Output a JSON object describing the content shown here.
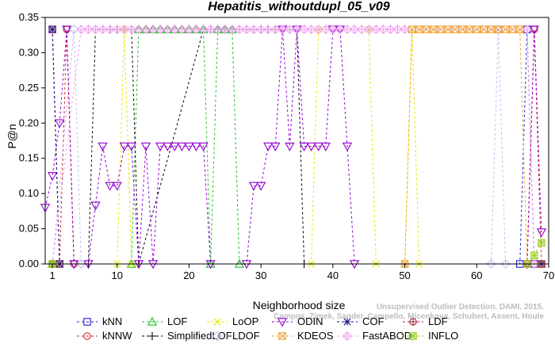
{
  "chart_data": {
    "type": "line",
    "title": "Hepatitis_withoutdupl_05_v09",
    "xlabel": "Neighborhood size",
    "ylabel": "P@n",
    "xlim": [
      0,
      70
    ],
    "ylim": [
      0,
      0.35
    ],
    "x_ticks": [
      1,
      10,
      20,
      30,
      40,
      50,
      60,
      70
    ],
    "y_ticks": [
      0.0,
      0.05,
      0.1,
      0.15,
      0.2,
      0.25,
      0.3,
      0.35
    ],
    "y_tick_labels": [
      "0.00",
      "0.05",
      "0.10",
      "0.15",
      "0.20",
      "0.25",
      "0.30",
      "0.35"
    ],
    "grid": false,
    "legend_position": "bottom",
    "series": [
      {
        "name": "kNN",
        "color": "#1f1fcf",
        "marker": "square",
        "points": [
          [
            1,
            0.333
          ],
          [
            2,
            0.0
          ],
          [
            66,
            0.0
          ],
          [
            67,
            0.333
          ],
          [
            68,
            0.0
          ],
          [
            69,
            0.0
          ]
        ]
      },
      {
        "name": "kNNW",
        "color": "#d62728",
        "marker": "circle",
        "points": [
          [
            1,
            0.333
          ],
          [
            2,
            0.0
          ],
          [
            3,
            0.333
          ],
          [
            4,
            0.0
          ],
          [
            67,
            0.0
          ],
          [
            68,
            0.333
          ],
          [
            69,
            0.0
          ]
        ]
      },
      {
        "name": "LOF",
        "color": "#22c022",
        "marker": "triangle-up",
        "points": [
          [
            1,
            0.0
          ],
          [
            12,
            0.0
          ],
          [
            13,
            0.333
          ],
          [
            14,
            0.333
          ],
          [
            15,
            0.333
          ],
          [
            16,
            0.333
          ],
          [
            17,
            0.333
          ],
          [
            18,
            0.333
          ],
          [
            19,
            0.333
          ],
          [
            20,
            0.333
          ],
          [
            21,
            0.333
          ],
          [
            22,
            0.333
          ],
          [
            23,
            0.0
          ],
          [
            24,
            0.333
          ],
          [
            25,
            0.333
          ],
          [
            26,
            0.333
          ],
          [
            27,
            0.0
          ],
          [
            69,
            0.0
          ]
        ]
      },
      {
        "name": "SimplifiedLOF",
        "color": "#000000",
        "marker": "plus",
        "points": [
          [
            1,
            0.0
          ],
          [
            6,
            0.0
          ],
          [
            7,
            0.333
          ],
          [
            8,
            0.333
          ],
          [
            9,
            0.333
          ],
          [
            10,
            0.333
          ],
          [
            11,
            0.333
          ],
          [
            12,
            0.333
          ],
          [
            13,
            0.0
          ],
          [
            22,
            0.333
          ],
          [
            23,
            0.333
          ],
          [
            24,
            0.333
          ],
          [
            25,
            0.333
          ],
          [
            26,
            0.333
          ],
          [
            27,
            0.333
          ],
          [
            28,
            0.333
          ],
          [
            29,
            0.333
          ],
          [
            30,
            0.333
          ],
          [
            31,
            0.333
          ],
          [
            32,
            0.333
          ],
          [
            33,
            0.333
          ],
          [
            34,
            0.333
          ],
          [
            35,
            0.333
          ],
          [
            36,
            0.0
          ],
          [
            69,
            0.0
          ]
        ]
      },
      {
        "name": "LoOP",
        "color": "#e6e600",
        "marker": "cross",
        "points": [
          [
            1,
            0.0
          ],
          [
            10,
            0.0
          ],
          [
            11,
            0.333
          ],
          [
            12,
            0.0
          ],
          [
            37,
            0.0
          ],
          [
            38,
            0.333
          ],
          [
            45,
            0.333
          ],
          [
            46,
            0.0
          ],
          [
            50,
            0.0
          ],
          [
            51,
            0.333
          ],
          [
            52,
            0.0
          ],
          [
            69,
            0.0
          ]
        ]
      },
      {
        "name": "LDOF",
        "color": "#c0c0f0",
        "marker": "diamond",
        "points": [
          [
            1,
            0.0
          ],
          [
            4,
            0.333
          ],
          [
            5,
            0.0
          ],
          [
            62,
            0.0
          ],
          [
            63,
            0.333
          ],
          [
            64,
            0.0
          ],
          [
            69,
            0.0
          ]
        ]
      },
      {
        "name": "ODIN",
        "color": "#9400d3",
        "marker": "triangle-down",
        "points": [
          [
            0,
            0.08
          ],
          [
            1,
            0.125
          ],
          [
            2,
            0.2
          ],
          [
            3,
            0.333
          ],
          [
            4,
            0.0
          ],
          [
            6,
            0.0
          ],
          [
            7,
            0.083
          ],
          [
            8,
            0.167
          ],
          [
            9,
            0.111
          ],
          [
            10,
            0.111
          ],
          [
            11,
            0.167
          ],
          [
            12,
            0.167
          ],
          [
            13,
            0.0
          ],
          [
            14,
            0.167
          ],
          [
            15,
            0.0
          ],
          [
            16,
            0.167
          ],
          [
            17,
            0.167
          ],
          [
            18,
            0.167
          ],
          [
            19,
            0.167
          ],
          [
            20,
            0.167
          ],
          [
            21,
            0.167
          ],
          [
            22,
            0.167
          ],
          [
            23,
            0.0
          ],
          [
            28,
            0.0
          ],
          [
            29,
            0.111
          ],
          [
            30,
            0.111
          ],
          [
            31,
            0.167
          ],
          [
            32,
            0.167
          ],
          [
            33,
            0.333
          ],
          [
            34,
            0.167
          ],
          [
            35,
            0.333
          ],
          [
            36,
            0.167
          ],
          [
            37,
            0.167
          ],
          [
            38,
            0.167
          ],
          [
            39,
            0.167
          ],
          [
            40,
            0.333
          ],
          [
            41,
            0.333
          ],
          [
            42,
            0.167
          ],
          [
            43,
            0.0
          ],
          [
            67,
            0.0
          ],
          [
            68,
            0.333
          ],
          [
            69,
            0.045
          ]
        ]
      },
      {
        "name": "KDEOS",
        "color": "#f0a030",
        "marker": "square-x",
        "points": [
          [
            1,
            0.0
          ],
          [
            50,
            0.0
          ],
          [
            51,
            0.333
          ],
          [
            52,
            0.333
          ],
          [
            53,
            0.333
          ],
          [
            54,
            0.333
          ],
          [
            55,
            0.333
          ],
          [
            56,
            0.333
          ],
          [
            57,
            0.333
          ],
          [
            58,
            0.333
          ],
          [
            59,
            0.333
          ],
          [
            60,
            0.333
          ],
          [
            61,
            0.333
          ],
          [
            62,
            0.333
          ],
          [
            63,
            0.333
          ],
          [
            64,
            0.333
          ],
          [
            65,
            0.333
          ],
          [
            66,
            0.333
          ],
          [
            67,
            0.0
          ],
          [
            69,
            0.0
          ]
        ]
      },
      {
        "name": "COF",
        "color": "#1a1a8a",
        "marker": "star",
        "points": [
          [
            1,
            0.333
          ],
          [
            2,
            0.0
          ],
          [
            69,
            0.0
          ]
        ]
      },
      {
        "name": "FastABOD",
        "color": "#f0a0f0",
        "marker": "diamond-plus",
        "points": [
          [
            1,
            0.0
          ],
          [
            5,
            0.333
          ],
          [
            6,
            0.333
          ],
          [
            7,
            0.333
          ],
          [
            8,
            0.333
          ],
          [
            9,
            0.333
          ],
          [
            10,
            0.333
          ],
          [
            11,
            0.333
          ],
          [
            12,
            0.333
          ],
          [
            13,
            0.333
          ],
          [
            14,
            0.333
          ],
          [
            15,
            0.333
          ],
          [
            16,
            0.333
          ],
          [
            17,
            0.333
          ],
          [
            18,
            0.333
          ],
          [
            19,
            0.333
          ],
          [
            20,
            0.333
          ],
          [
            21,
            0.333
          ],
          [
            22,
            0.333
          ],
          [
            23,
            0.333
          ],
          [
            24,
            0.333
          ],
          [
            25,
            0.333
          ],
          [
            26,
            0.333
          ],
          [
            27,
            0.333
          ],
          [
            28,
            0.333
          ],
          [
            29,
            0.333
          ],
          [
            30,
            0.333
          ],
          [
            31,
            0.333
          ],
          [
            32,
            0.333
          ],
          [
            33,
            0.333
          ],
          [
            34,
            0.333
          ],
          [
            35,
            0.333
          ],
          [
            36,
            0.333
          ],
          [
            37,
            0.333
          ],
          [
            38,
            0.333
          ],
          [
            39,
            0.333
          ],
          [
            40,
            0.333
          ],
          [
            41,
            0.333
          ],
          [
            42,
            0.333
          ],
          [
            43,
            0.333
          ],
          [
            44,
            0.333
          ],
          [
            45,
            0.333
          ],
          [
            46,
            0.333
          ],
          [
            47,
            0.333
          ],
          [
            48,
            0.333
          ],
          [
            49,
            0.333
          ],
          [
            50,
            0.333
          ],
          [
            67,
            0.333
          ],
          [
            68,
            0.0
          ],
          [
            69,
            0.0
          ]
        ]
      },
      {
        "name": "LDF",
        "color": "#a02030",
        "marker": "circle-plus",
        "points": [
          [
            1,
            0.0
          ],
          [
            69,
            0.0
          ]
        ]
      },
      {
        "name": "INFLO",
        "color": "#9ad020",
        "marker": "square-star",
        "points": [
          [
            1,
            0.0
          ],
          [
            67,
            0.0
          ],
          [
            68,
            0.012
          ],
          [
            69,
            0.03
          ]
        ]
      }
    ]
  },
  "watermark": {
    "line1": "Unsupervised Outlier Detection. DAMI, 2015.",
    "line2": "Campos, Zimek, Sander, Campello, Micenkova, Schubert, Assent, Houle"
  }
}
